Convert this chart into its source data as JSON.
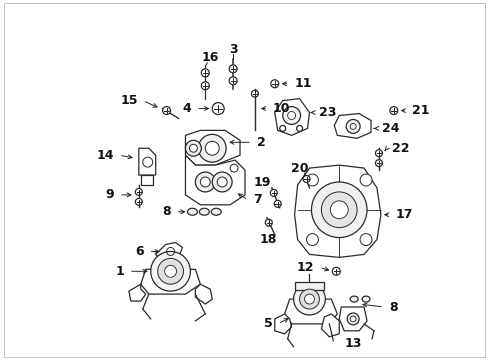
{
  "background_color": "#ffffff",
  "figsize": [
    4.89,
    3.6
  ],
  "dpi": 100,
  "line_color": "#2a2a2a",
  "lw": 0.9
}
